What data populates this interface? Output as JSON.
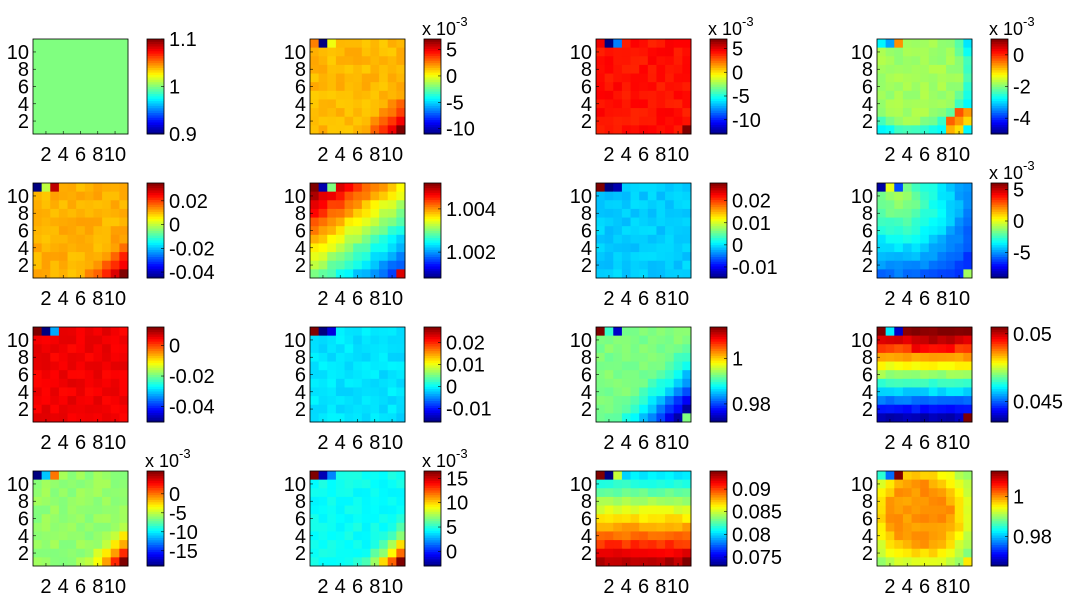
{
  "chart_data": [
    {
      "type": "heatmap",
      "x": [
        1,
        2,
        3,
        4,
        5,
        6,
        7,
        8,
        9,
        10,
        11
      ],
      "y": [
        1,
        2,
        3,
        4,
        5,
        6,
        7,
        8,
        9,
        10,
        11
      ],
      "xticks": [
        "2",
        "4",
        "6",
        "8",
        "10"
      ],
      "yticks": [
        "2",
        "4",
        "6",
        "8",
        "10"
      ],
      "clim": [
        0.9,
        1.1
      ],
      "cbar_ticks": [
        "0.9",
        "1",
        "1.1"
      ],
      "cbar_exponent": "",
      "pattern": "uniform",
      "v0": 1.0,
      "vmin_seen": 1.0,
      "vmax_seen": 1.0,
      "corner": [],
      "approx_value": "all cells = 1"
    },
    {
      "type": "heatmap",
      "x": [
        1,
        2,
        3,
        4,
        5,
        6,
        7,
        8,
        9,
        10,
        11
      ],
      "y": [
        1,
        2,
        3,
        4,
        5,
        6,
        7,
        8,
        9,
        10,
        11
      ],
      "xticks": [
        "2",
        "4",
        "6",
        "8",
        "10"
      ],
      "yticks": [
        "2",
        "4",
        "6",
        "8",
        "10"
      ],
      "clim": [
        -0.011,
        0.007
      ],
      "cbar_ticks": [
        "-10",
        "-5",
        "0",
        "5"
      ],
      "cbar_exponent": "x 10",
      "pattern": "br-increase",
      "v0": 0.0015,
      "corner": [
        [
          0.0,
          0.0,
          0.0025
        ],
        [
          0.0,
          0.0,
          -0.011
        ],
        [
          1.0,
          0.0,
          0.0
        ],
        [
          2.0,
          0.0,
          0.007
        ]
      ],
      "approx_value": "mostly ~1.5e-3, rising to ~7e-3 at bottom-right"
    },
    {
      "type": "heatmap",
      "x": [
        1,
        2,
        3,
        4,
        5,
        6,
        7,
        8,
        9,
        10,
        11
      ],
      "y": [
        1,
        2,
        3,
        4,
        5,
        6,
        7,
        8,
        9,
        10,
        11
      ],
      "xticks": [
        "2",
        "4",
        "6",
        "8",
        "10"
      ],
      "yticks": [
        "2",
        "4",
        "6",
        "8",
        "10"
      ],
      "clim": [
        -0.013,
        0.007
      ],
      "cbar_ticks": [
        "-10",
        "-5",
        "0",
        "5"
      ],
      "cbar_exponent": "x 10",
      "pattern": "flat-high",
      "v0": 0.0042,
      "corner": [
        [
          0.0,
          0.0,
          0.0048
        ],
        [
          0.0,
          0.0,
          -0.013
        ],
        [
          1.0,
          0.0,
          -0.008
        ],
        [
          2.0,
          0.0,
          0.007
        ]
      ],
      "approx_value": "mostly ~4e-3"
    },
    {
      "type": "heatmap",
      "x": [
        1,
        2,
        3,
        4,
        5,
        6,
        7,
        8,
        9,
        10,
        11
      ],
      "y": [
        1,
        2,
        3,
        4,
        5,
        6,
        7,
        8,
        9,
        10,
        11
      ],
      "xticks": [
        "2",
        "4",
        "6",
        "8",
        "10"
      ],
      "yticks": [
        "2",
        "4",
        "6",
        "8",
        "10"
      ],
      "clim": [
        -0.005,
        0.001
      ],
      "cbar_ticks": [
        "-4",
        "-2",
        "0"
      ],
      "cbar_exponent": "x 10",
      "pattern": "arc",
      "v0": -0.0018,
      "corner": [
        [
          0.0,
          0.0,
          -0.0028
        ],
        [
          0.0,
          0.0,
          -0.0033
        ],
        [
          1.0,
          0.0,
          -0.0006
        ],
        [
          2.0,
          0.0,
          -0.0028
        ]
      ],
      "approx_value": "~ -2e-3, low arc near edges, high at bottom-right"
    },
    {
      "type": "heatmap",
      "x": [
        1,
        2,
        3,
        4,
        5,
        6,
        7,
        8,
        9,
        10,
        11
      ],
      "y": [
        1,
        2,
        3,
        4,
        5,
        6,
        7,
        8,
        9,
        10,
        11
      ],
      "xticks": [
        "2",
        "4",
        "6",
        "8",
        "10"
      ],
      "yticks": [
        "2",
        "4",
        "6",
        "8",
        "10"
      ],
      "clim": [
        -0.045,
        0.035
      ],
      "cbar_ticks": [
        "-0.04",
        "-0.02",
        "0",
        "0.02"
      ],
      "cbar_exponent": "",
      "pattern": "br-increase",
      "v0": 0.011,
      "corner": [
        [
          0.0,
          0.0,
          -0.045
        ],
        [
          0.0,
          0.0,
          0.0
        ],
        [
          1.0,
          0.0,
          0.03
        ],
        [
          2.0,
          0.0,
          0.035
        ]
      ],
      "approx_value": "mostly ~0.011"
    },
    {
      "type": "heatmap",
      "x": [
        1,
        2,
        3,
        4,
        5,
        6,
        7,
        8,
        9,
        10,
        11
      ],
      "y": [
        1,
        2,
        3,
        4,
        5,
        6,
        7,
        8,
        9,
        10,
        11
      ],
      "xticks": [
        "2",
        "4",
        "6",
        "8",
        "10"
      ],
      "yticks": [
        "2",
        "4",
        "6",
        "8",
        "10"
      ],
      "clim": [
        1.0008,
        1.0052
      ],
      "cbar_ticks": [
        "1.002",
        "1.004"
      ],
      "cbar_exponent": "",
      "pattern": "diag-decrease",
      "v0": 1.0032,
      "corner": [
        [
          0.0,
          0.0,
          1.0052
        ],
        [
          0.0,
          0.0,
          1.001
        ],
        [
          1.0,
          0.0,
          1.003
        ],
        [
          2.0,
          0.0,
          1.0048
        ]
      ],
      "approx_value": "~1.003 top-left down to ~1.001 bottom-right"
    },
    {
      "type": "heatmap",
      "x": [
        1,
        2,
        3,
        4,
        5,
        6,
        7,
        8,
        9,
        10,
        11
      ],
      "y": [
        1,
        2,
        3,
        4,
        5,
        6,
        7,
        8,
        9,
        10,
        11
      ],
      "xticks": [
        "2",
        "4",
        "6",
        "8",
        "10"
      ],
      "yticks": [
        "2",
        "4",
        "6",
        "8",
        "10"
      ],
      "clim": [
        -0.015,
        0.028
      ],
      "cbar_ticks": [
        "-0.01",
        "0",
        "0.01",
        "0.02"
      ],
      "cbar_exponent": "",
      "pattern": "flat",
      "v0": -0.001,
      "corner": [
        [
          0.0,
          0.0,
          0.028
        ],
        [
          0.0,
          0.0,
          -0.015
        ],
        [
          1.0,
          0.0,
          -0.013
        ],
        [
          2.0,
          0.0,
          -0.001
        ]
      ],
      "approx_value": "mostly ~ -0.001"
    },
    {
      "type": "heatmap",
      "x": [
        1,
        2,
        3,
        4,
        5,
        6,
        7,
        8,
        9,
        10,
        11
      ],
      "y": [
        1,
        2,
        3,
        4,
        5,
        6,
        7,
        8,
        9,
        10,
        11
      ],
      "xticks": [
        "2",
        "4",
        "6",
        "8",
        "10"
      ],
      "yticks": [
        "2",
        "4",
        "6",
        "8",
        "10"
      ],
      "clim": [
        -0.009,
        0.006
      ],
      "cbar_ticks": [
        "-5",
        "0",
        "5"
      ],
      "cbar_exponent": "x 10",
      "pattern": "ring",
      "v0": -0.0035,
      "corner": [
        [
          0.0,
          0.0,
          -0.0085
        ],
        [
          0.0,
          0.0,
          0.0
        ],
        [
          1.0,
          0.0,
          -0.006
        ],
        [
          2.0,
          0.0,
          -0.001
        ]
      ],
      "approx_value": "~ -3.5e-3 with bright upper-left, dark lower-right"
    },
    {
      "type": "heatmap",
      "x": [
        1,
        2,
        3,
        4,
        5,
        6,
        7,
        8,
        9,
        10,
        11
      ],
      "y": [
        1,
        2,
        3,
        4,
        5,
        6,
        7,
        8,
        9,
        10,
        11
      ],
      "xticks": [
        "2",
        "4",
        "6",
        "8",
        "10"
      ],
      "yticks": [
        "2",
        "4",
        "6",
        "8",
        "10"
      ],
      "clim": [
        -0.05,
        0.012
      ],
      "cbar_ticks": [
        "-0.04",
        "-0.02",
        "0"
      ],
      "cbar_exponent": "",
      "pattern": "flat-high",
      "v0": 0.005,
      "corner": [
        [
          0.0,
          0.0,
          0.012
        ],
        [
          0.0,
          0.0,
          -0.05
        ],
        [
          1.0,
          0.0,
          -0.032
        ],
        [
          2.0,
          0.0,
          0.004
        ]
      ],
      "approx_value": "mostly ~5e-3"
    },
    {
      "type": "heatmap",
      "x": [
        1,
        2,
        3,
        4,
        5,
        6,
        7,
        8,
        9,
        10,
        11
      ],
      "y": [
        1,
        2,
        3,
        4,
        5,
        6,
        7,
        8,
        9,
        10,
        11
      ],
      "xticks": [
        "2",
        "4",
        "6",
        "8",
        "10"
      ],
      "yticks": [
        "2",
        "4",
        "6",
        "8",
        "10"
      ],
      "clim": [
        -0.016,
        0.027
      ],
      "cbar_ticks": [
        "-0.01",
        "0",
        "0.01",
        "0.02"
      ],
      "cbar_exponent": "",
      "pattern": "flat",
      "v0": -0.001,
      "corner": [
        [
          0.0,
          0.0,
          0.027
        ],
        [
          0.0,
          0.0,
          -0.016
        ],
        [
          1.0,
          0.0,
          -0.012
        ],
        [
          2.0,
          0.0,
          -0.002
        ]
      ],
      "approx_value": "mostly ~ -0.001"
    },
    {
      "type": "heatmap",
      "x": [
        1,
        2,
        3,
        4,
        5,
        6,
        7,
        8,
        9,
        10,
        11
      ],
      "y": [
        1,
        2,
        3,
        4,
        5,
        6,
        7,
        8,
        9,
        10,
        11
      ],
      "xticks": [
        "2",
        "4",
        "6",
        "8",
        "10"
      ],
      "yticks": [
        "2",
        "4",
        "6",
        "8",
        "10"
      ],
      "clim": [
        0.972,
        1.014
      ],
      "cbar_ticks": [
        "0.98",
        "1"
      ],
      "cbar_exponent": "",
      "pattern": "br-decrease",
      "v0": 0.993,
      "corner": [
        [
          0.0,
          0.0,
          1.014
        ],
        [
          0.0,
          0.0,
          0.99
        ],
        [
          1.0,
          0.0,
          0.975
        ],
        [
          2.0,
          0.0,
          0.993
        ]
      ],
      "approx_value": "~0.993 down to ~0.975 at bottom-right"
    },
    {
      "type": "heatmap",
      "x": [
        1,
        2,
        3,
        4,
        5,
        6,
        7,
        8,
        9,
        10,
        11
      ],
      "y": [
        1,
        2,
        3,
        4,
        5,
        6,
        7,
        8,
        9,
        10,
        11
      ],
      "xticks": [
        "2",
        "4",
        "6",
        "8",
        "10"
      ],
      "yticks": [
        "2",
        "4",
        "6",
        "8",
        "10"
      ],
      "clim": [
        0.0435,
        0.0505
      ],
      "cbar_ticks": [
        "0.045",
        "0.05"
      ],
      "cbar_exponent": "",
      "pattern": "vertical-increase",
      "v0": 0.044,
      "corner": [
        [
          0.0,
          0.0,
          0.0505
        ],
        [
          0.0,
          0.0,
          0.046
        ],
        [
          1.0,
          0.0,
          0.044
        ],
        [
          2.0,
          0.0,
          0.0505
        ]
      ],
      "approx_value": "~0.044 at bottom rising to ~0.050 at top"
    },
    {
      "type": "heatmap",
      "x": [
        1,
        2,
        3,
        4,
        5,
        6,
        7,
        8,
        9,
        10,
        11
      ],
      "y": [
        1,
        2,
        3,
        4,
        5,
        6,
        7,
        8,
        9,
        10,
        11
      ],
      "xticks": [
        "2",
        "4",
        "6",
        "8",
        "10"
      ],
      "yticks": [
        "2",
        "4",
        "6",
        "8",
        "10"
      ],
      "clim": [
        -0.019,
        0.006
      ],
      "cbar_ticks": [
        "-15",
        "-10",
        "-5",
        "0"
      ],
      "cbar_exponent": "x 10",
      "pattern": "br-increase",
      "v0": -0.006,
      "corner": [
        [
          0.0,
          0.0,
          -0.019
        ],
        [
          0.0,
          0.0,
          -0.011
        ],
        [
          1.0,
          0.0,
          0.0
        ],
        [
          2.0,
          0.0,
          0.006
        ]
      ],
      "approx_value": "~ -6e-3, rising to ~6e-3 at bottom-right"
    },
    {
      "type": "heatmap",
      "x": [
        1,
        2,
        3,
        4,
        5,
        6,
        7,
        8,
        9,
        10,
        11
      ],
      "y": [
        1,
        2,
        3,
        4,
        5,
        6,
        7,
        8,
        9,
        10,
        11
      ],
      "xticks": [
        "2",
        "4",
        "6",
        "8",
        "10"
      ],
      "yticks": [
        "2",
        "4",
        "6",
        "8",
        "10"
      ],
      "clim": [
        -0.003,
        0.0165
      ],
      "cbar_ticks": [
        "0",
        "5",
        "10",
        "15"
      ],
      "cbar_exponent": "x 10",
      "pattern": "br-increase",
      "v0": 0.0045,
      "corner": [
        [
          0.0,
          0.0,
          0.0165
        ],
        [
          0.0,
          0.0,
          -0.002
        ],
        [
          1.0,
          0.0,
          0.002
        ],
        [
          2.0,
          0.0,
          0.0165
        ]
      ],
      "approx_value": "~4.5e-3, rising to ~1.6e-2 at bottom-right"
    },
    {
      "type": "heatmap",
      "x": [
        1,
        2,
        3,
        4,
        5,
        6,
        7,
        8,
        9,
        10,
        11
      ],
      "y": [
        1,
        2,
        3,
        4,
        5,
        6,
        7,
        8,
        9,
        10,
        11
      ],
      "xticks": [
        "2",
        "4",
        "6",
        "8",
        "10"
      ],
      "yticks": [
        "2",
        "4",
        "6",
        "8",
        "10"
      ],
      "clim": [
        0.073,
        0.094
      ],
      "cbar_ticks": [
        "0.075",
        "0.08",
        "0.085",
        "0.09"
      ],
      "cbar_exponent": "",
      "pattern": "vertical-decrease",
      "v0": 0.082,
      "corner": [
        [
          0.0,
          0.0,
          0.094
        ],
        [
          0.0,
          0.0,
          0.073
        ],
        [
          1.0,
          0.0,
          0.085
        ],
        [
          2.0,
          0.0,
          0.094
        ]
      ],
      "approx_value": "~0.082 at top rising to ~0.092 at bottom"
    },
    {
      "type": "heatmap",
      "x": [
        1,
        2,
        3,
        4,
        5,
        6,
        7,
        8,
        9,
        10,
        11
      ],
      "y": [
        1,
        2,
        3,
        4,
        5,
        6,
        7,
        8,
        9,
        10,
        11
      ],
      "xticks": [
        "2",
        "4",
        "6",
        "8",
        "10"
      ],
      "yticks": [
        "2",
        "4",
        "6",
        "8",
        "10"
      ],
      "clim": [
        0.965,
        1.013
      ],
      "cbar_ticks": [
        "0.98",
        "1"
      ],
      "cbar_exponent": "",
      "pattern": "ring-high",
      "v0": 1.0,
      "corner": [
        [
          0.0,
          0.0,
          0.985
        ],
        [
          0.0,
          0.0,
          0.976
        ],
        [
          1.0,
          0.0,
          1.013
        ],
        [
          2.0,
          0.0,
          0.996
        ]
      ],
      "approx_value": "mostly ~1.0, lower toward edges"
    }
  ]
}
